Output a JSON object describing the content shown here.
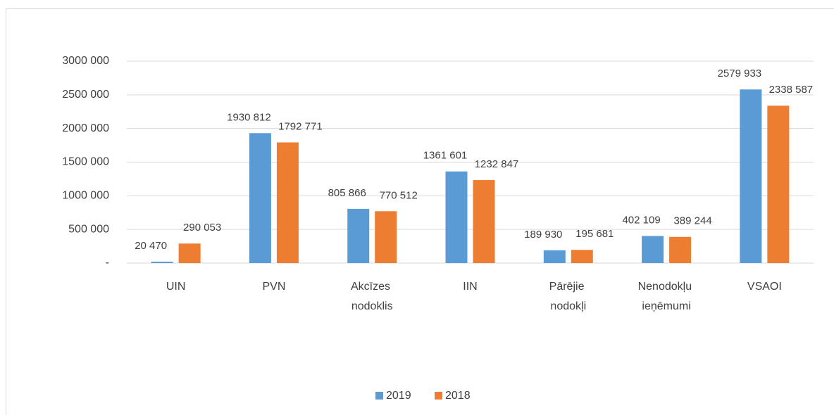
{
  "chart_data": {
    "type": "bar",
    "categories": [
      "UIN",
      "PVN",
      "Akcīzes nodoklis",
      "IIN",
      "Pārējie nodokļi",
      "Nenodokļu ieņēmumi",
      "VSAOI"
    ],
    "series": [
      {
        "name": "2019",
        "color": "#5b9bd5",
        "values": [
          20470,
          1930812,
          805866,
          1361601,
          189930,
          402109,
          2579933
        ],
        "value_labels": [
          "20 470",
          "1930 812",
          "805 866",
          "1361 601",
          "189 930",
          "402 109",
          "2579 933"
        ]
      },
      {
        "name": "2018",
        "color": "#ed7d31",
        "values": [
          290053,
          1792771,
          770512,
          1232847,
          195681,
          389244,
          2338587
        ],
        "value_labels": [
          "290 053",
          "1792 771",
          "770 512",
          "1232 847",
          "195 681",
          "389 244",
          "2338 587"
        ]
      }
    ],
    "ylim": [
      0,
      3000000
    ],
    "yticks": [
      {
        "value": 0,
        "label": "-"
      },
      {
        "value": 500000,
        "label": "500 000"
      },
      {
        "value": 1000000,
        "label": "1000 000"
      },
      {
        "value": 1500000,
        "label": "1500 000"
      },
      {
        "value": 2000000,
        "label": "2000 000"
      },
      {
        "value": 2500000,
        "label": "2500 000"
      },
      {
        "value": 3000000,
        "label": "3000 000"
      }
    ],
    "grid": true,
    "legend": "bottom"
  }
}
